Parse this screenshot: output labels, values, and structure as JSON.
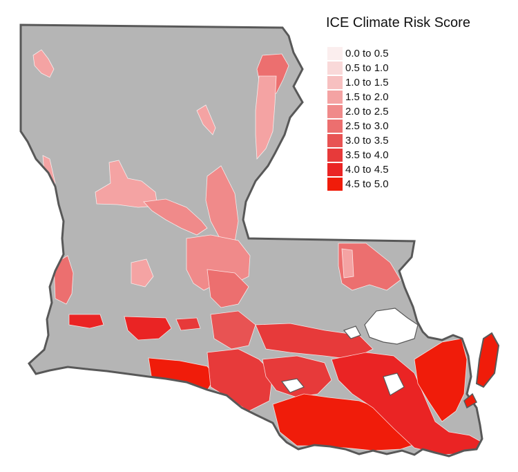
{
  "legend": {
    "title": "ICE Climate Risk Score",
    "items": [
      {
        "label": "0.0 to 0.5",
        "color": "#fbeeee"
      },
      {
        "label": "0.5 to 1.0",
        "color": "#f9d9d9"
      },
      {
        "label": "1.0 to 1.5",
        "color": "#f7c0c0"
      },
      {
        "label": "1.5 to 2.0",
        "color": "#f4a3a3"
      },
      {
        "label": "2.0 to 2.5",
        "color": "#f08a8a"
      },
      {
        "label": "2.5 to 3.0",
        "color": "#ec6f6f"
      },
      {
        "label": "3.0 to 3.5",
        "color": "#e85353"
      },
      {
        "label": "3.5 to 4.0",
        "color": "#e73a3a"
      },
      {
        "label": "4.0 to 4.5",
        "color": "#ea2424"
      },
      {
        "label": "4.5 to 5.0",
        "color": "#f01c0a"
      }
    ]
  },
  "colors": {
    "state_fill": "#b5b5b5",
    "state_outline": "#585858",
    "water": "#ffffff"
  }
}
